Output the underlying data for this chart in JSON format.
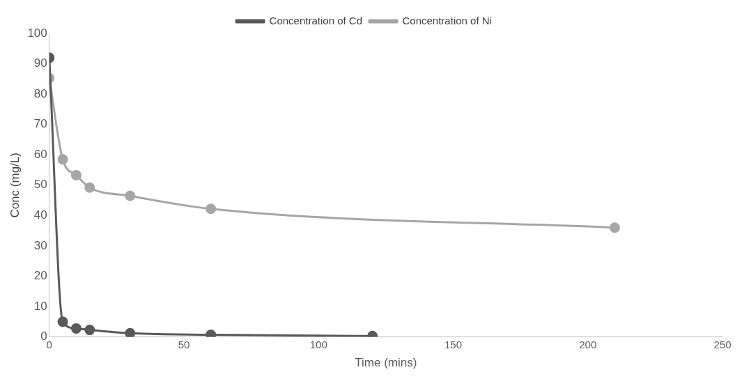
{
  "chart_data": {
    "type": "line",
    "xlabel": "Time (mins)",
    "ylabel": "Conc (mg/L)",
    "xlim": [
      0,
      250
    ],
    "xticks": [
      0,
      50,
      100,
      150,
      200,
      250
    ],
    "ylim": [
      0,
      100
    ],
    "yticks": [
      0,
      10,
      20,
      30,
      40,
      50,
      60,
      70,
      80,
      90,
      100
    ],
    "grid": false,
    "legend": "top",
    "marker": "circle",
    "line_style": "solid",
    "series": [
      {
        "name": "Concentration of Cd",
        "color": "#595959",
        "x": [
          0,
          5,
          10,
          15,
          30,
          60,
          120
        ],
        "values": [
          92,
          5,
          2.8,
          2.3,
          1.2,
          0.7,
          0.3
        ]
      },
      {
        "name": "Concentration of Ni",
        "color": "#a6a6a6",
        "x": [
          0,
          5,
          10,
          15,
          30,
          60,
          210
        ],
        "values": [
          85.3,
          58.5,
          53.3,
          49.2,
          46.5,
          42.2,
          36
        ]
      }
    ]
  }
}
